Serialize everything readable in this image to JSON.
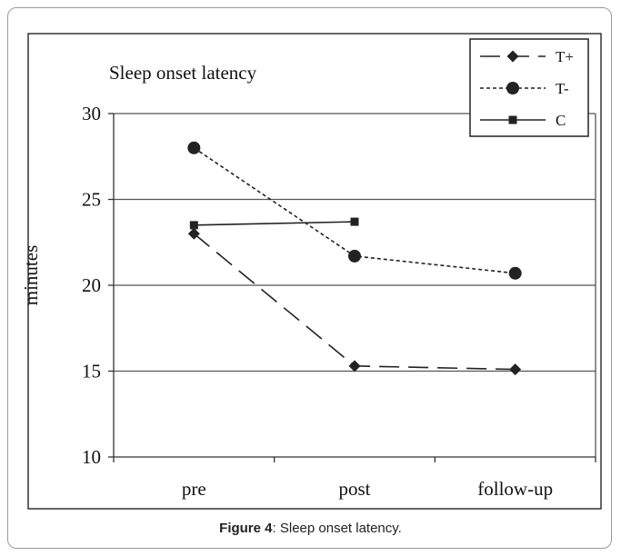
{
  "caption": {
    "label": "Figure 4",
    "text": ": Sleep onset latency."
  },
  "chart_data": {
    "type": "line",
    "title": "Sleep onset latency",
    "ylabel": "minutes",
    "xlabel": "",
    "categories": [
      "pre",
      "post",
      "follow-up"
    ],
    "ylim": [
      10,
      30
    ],
    "yticks": [
      10,
      15,
      20,
      25,
      30
    ],
    "grid": true,
    "legend_position": "top-right",
    "series": [
      {
        "name": "T+",
        "values": [
          23.0,
          15.3,
          15.1
        ],
        "marker": "diamond",
        "dash": "long-dash",
        "color": "#222222"
      },
      {
        "name": "T-",
        "values": [
          28.0,
          21.7,
          20.7
        ],
        "marker": "circle",
        "dash": "dotted",
        "color": "#222222"
      },
      {
        "name": "C",
        "values": [
          23.5,
          23.7,
          null
        ],
        "marker": "square",
        "dash": "solid",
        "color": "#222222"
      }
    ]
  }
}
